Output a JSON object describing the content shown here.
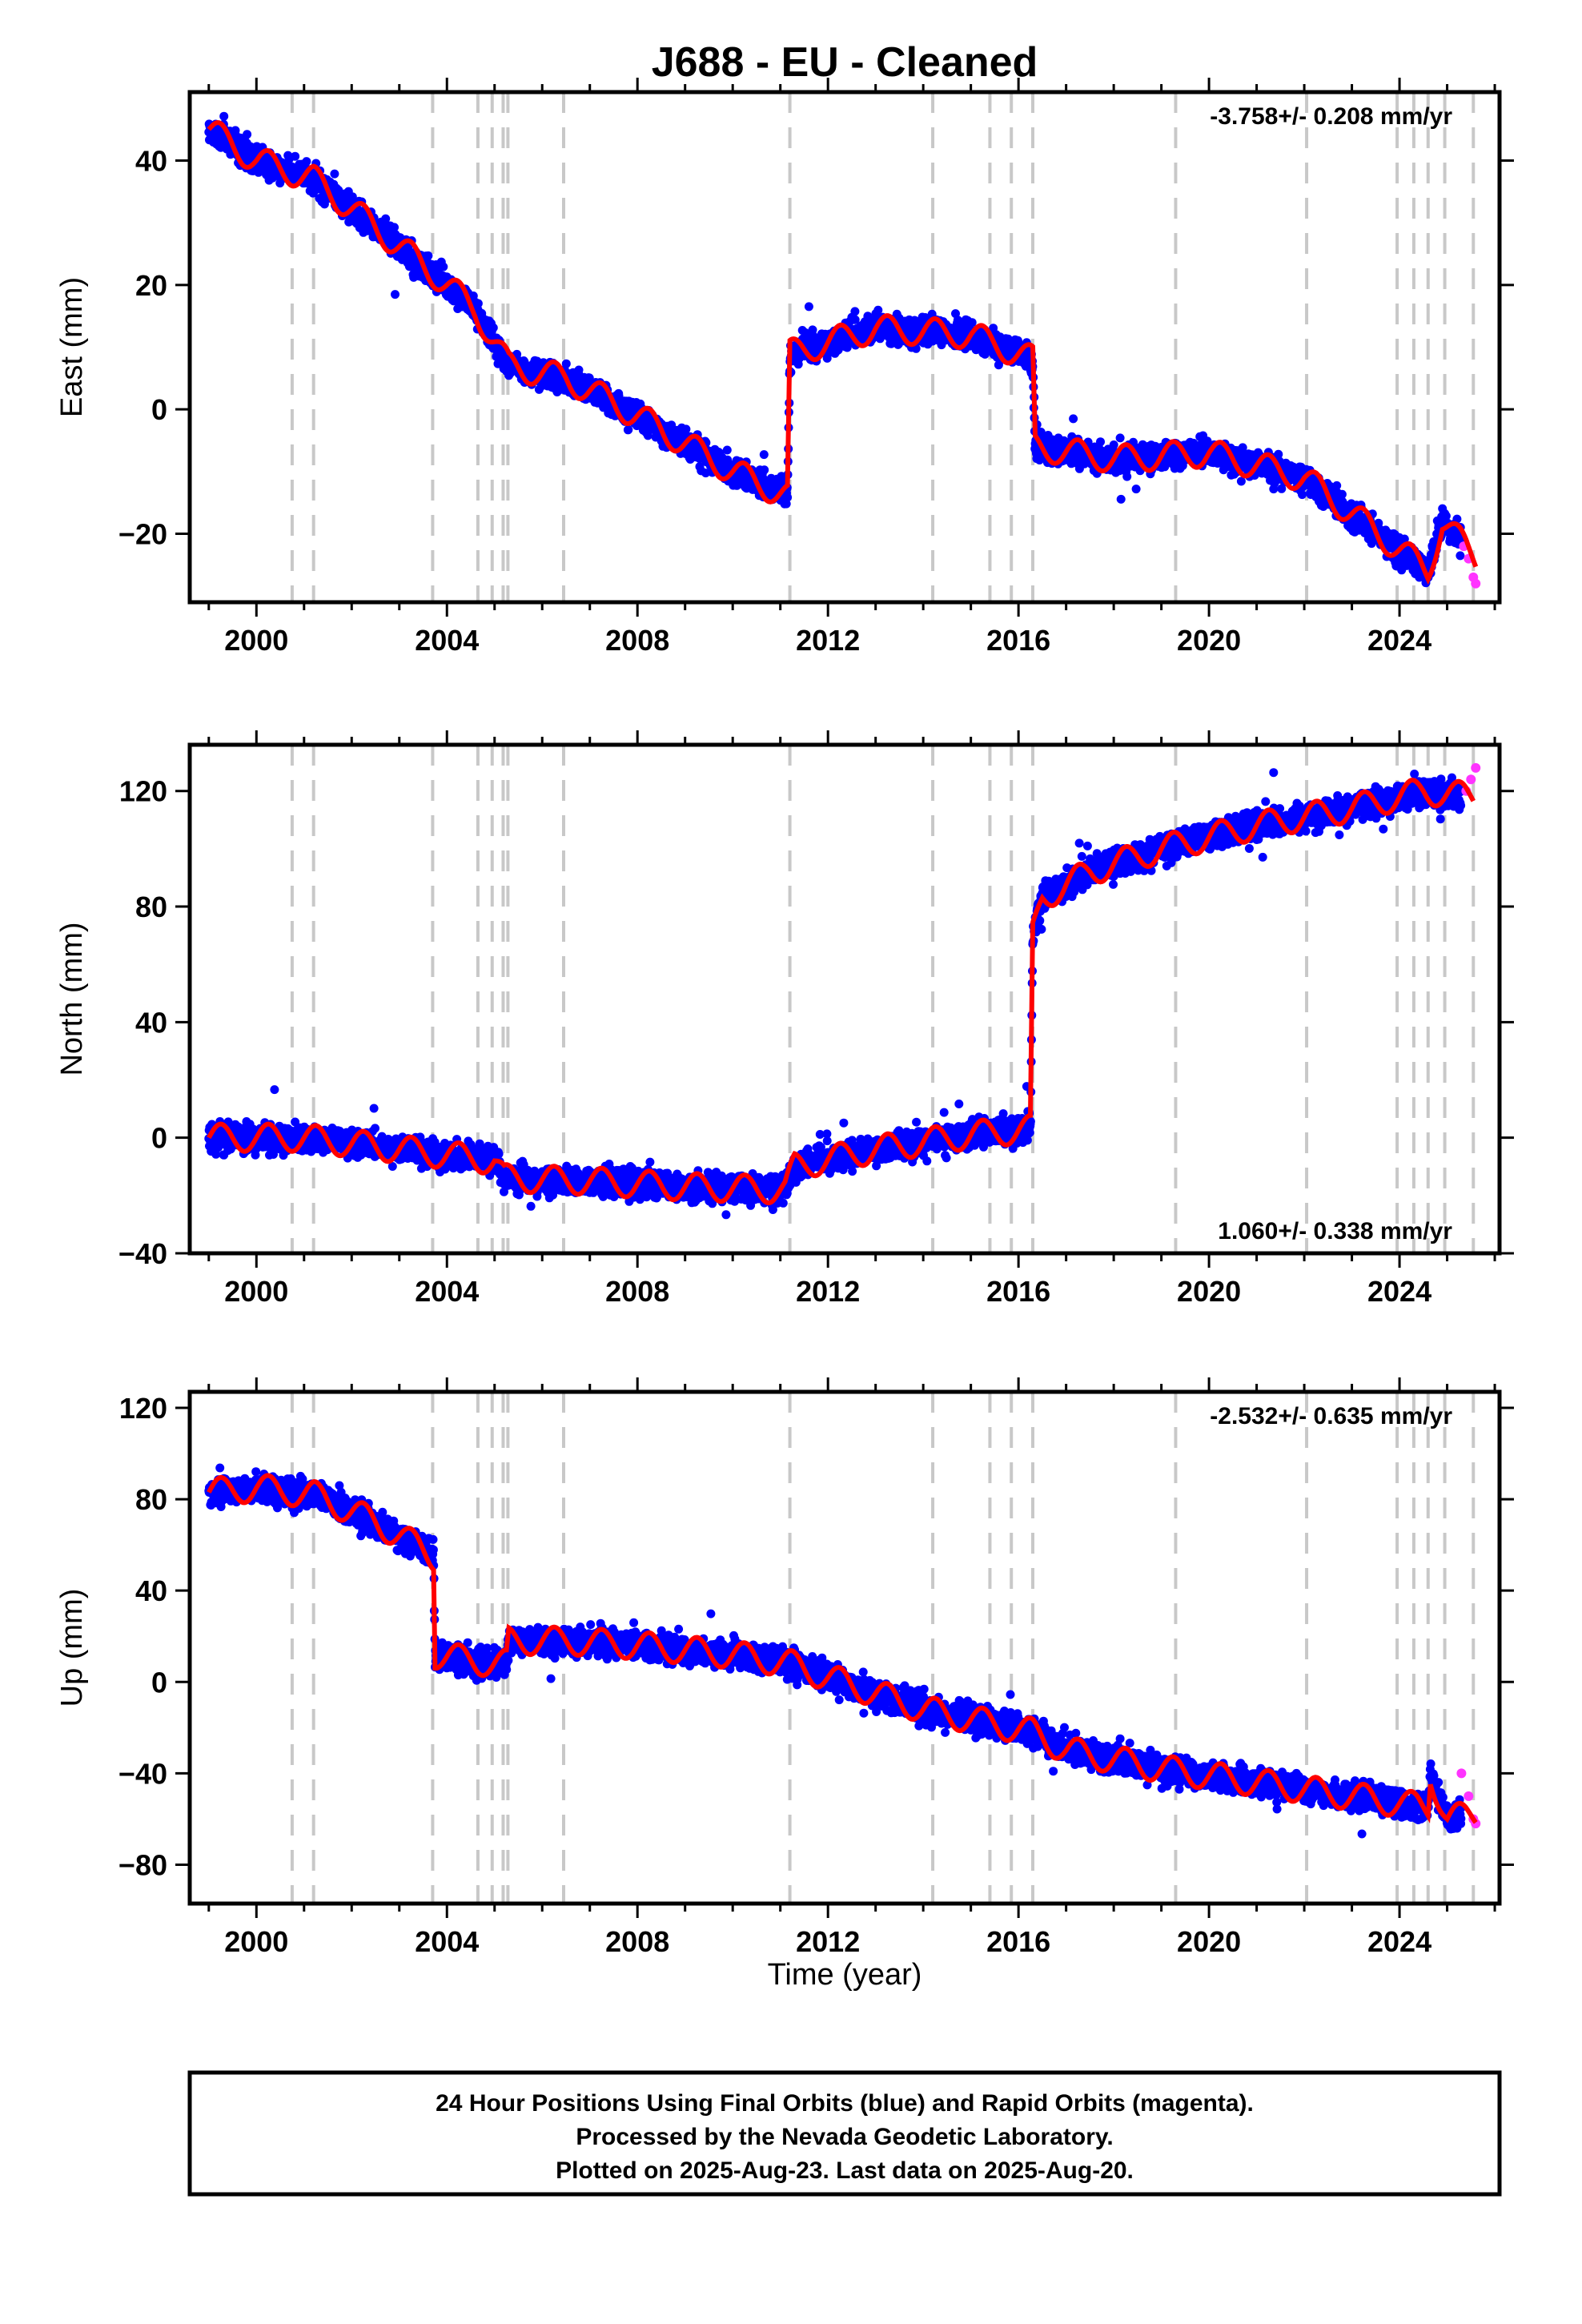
{
  "chart_data": {
    "type": "scatter",
    "title": "J688  - EU - Cleaned",
    "xlabel": "Time (year)",
    "xlim": [
      1998.6,
      2026.1
    ],
    "xticks": [
      2000,
      2004,
      2008,
      2012,
      2016,
      2020,
      2024
    ],
    "xtick_labels": [
      "2000",
      "2004",
      "2008",
      "2012",
      "2016",
      "2020",
      "2024"
    ],
    "event_lines": [
      2000.75,
      2001.2,
      2003.7,
      2004.65,
      2004.95,
      2005.18,
      2005.28,
      2006.45,
      2011.2,
      2014.2,
      2015.4,
      2015.85,
      2016.3,
      2019.3,
      2022.05,
      2023.95,
      2024.3,
      2024.6,
      2024.95,
      2025.55
    ],
    "legend": "none",
    "series_styles": {
      "final_orbits": "#0000ff",
      "rapid_orbits": "#ff33ff",
      "model_fit": "#ff0000",
      "event_line": "#c8c8c8"
    },
    "panels": [
      {
        "ylabel": "East (mm)",
        "ylim": [
          -31,
          51
        ],
        "yticks": [
          -20,
          0,
          20,
          40
        ],
        "ytick_labels": [
          "−20",
          "0",
          "20",
          "40"
        ],
        "rate_label": "-3.758+/- 0.208 mm/yr",
        "rate_position": "top-right",
        "fit": {
          "x": [
            1999.0,
            2000.0,
            2001.2,
            2003.7,
            2004.6,
            2005.3,
            2006.5,
            2008.0,
            2010.0,
            2011.15,
            2011.2,
            2013.0,
            2015.0,
            2016.3,
            2016.35,
            2018.0,
            2020.0,
            2022.0,
            2024.6,
            2024.9,
            2025.6
          ],
          "y": [
            45,
            40,
            37,
            22,
            16,
            7,
            5,
            -1,
            -10,
            -14,
            9,
            13,
            12,
            8,
            -6,
            -8,
            -7,
            -11,
            -26,
            -18,
            -24
          ]
        },
        "rapid": {
          "x": [
            2025.35,
            2025.45,
            2025.55,
            2025.6
          ],
          "y": [
            -22,
            -24,
            -27,
            -28
          ]
        }
      },
      {
        "ylabel": "North (mm)",
        "ylim": [
          -40,
          136
        ],
        "yticks": [
          -40,
          0,
          40,
          80,
          120
        ],
        "ytick_labels": [
          "−40",
          "0",
          "40",
          "80",
          "120"
        ],
        "rate_label": "1.060+/- 0.338 mm/yr",
        "rate_position": "bottom-right",
        "fit": {
          "x": [
            1999.0,
            2001.0,
            2003.0,
            2005.0,
            2005.2,
            2007.0,
            2009.0,
            2011.1,
            2011.3,
            2013.0,
            2015.0,
            2016.25,
            2016.3,
            2016.5,
            2017.5,
            2019.0,
            2021.0,
            2023.0,
            2024.5,
            2025.55
          ],
          "y": [
            0,
            0,
            -4,
            -8,
            -14,
            -15,
            -17,
            -18,
            -10,
            -4,
            1,
            3,
            70,
            83,
            92,
            100,
            108,
            114,
            120,
            118
          ]
        },
        "rapid": {
          "x": [
            2025.4,
            2025.5,
            2025.6
          ],
          "y": [
            120,
            124,
            128
          ]
        }
      },
      {
        "ylabel": "Up (mm)",
        "ylim": [
          -97,
          127
        ],
        "yticks": [
          -80,
          -40,
          0,
          40,
          80,
          120
        ],
        "ytick_labels": [
          "−80",
          "−40",
          "0",
          "40",
          "80",
          "120"
        ],
        "rate_label": "-2.532+/- 0.635 mm/yr",
        "rate_position": "top-right",
        "fit": {
          "x": [
            1999.0,
            2000.0,
            2001.2,
            2002.5,
            2003.5,
            2003.72,
            2003.75,
            2004.65,
            2005.25,
            2005.3,
            2006.5,
            2008.0,
            2010.0,
            2011.2,
            2012.0,
            2014.0,
            2016.3,
            2017.0,
            2019.0,
            2021.0,
            2023.0,
            2024.6,
            2024.65,
            2025.0,
            2025.6
          ],
          "y": [
            83,
            85,
            82,
            70,
            58,
            55,
            12,
            9,
            8,
            18,
            18,
            16,
            12,
            8,
            2,
            -12,
            -22,
            -30,
            -38,
            -44,
            -50,
            -55,
            -40,
            -60,
            -58
          ]
        },
        "rapid": {
          "x": [
            2025.3,
            2025.45,
            2025.55,
            2025.6
          ],
          "y": [
            -40,
            -50,
            -60,
            -62
          ]
        }
      }
    ]
  },
  "footer": {
    "line1": "24 Hour Positions Using Final Orbits (blue) and Rapid Orbits (magenta).",
    "line2": "Processed by the Nevada Geodetic Laboratory.",
    "line3": "Plotted on 2025-Aug-23. Last data on 2025-Aug-20."
  }
}
